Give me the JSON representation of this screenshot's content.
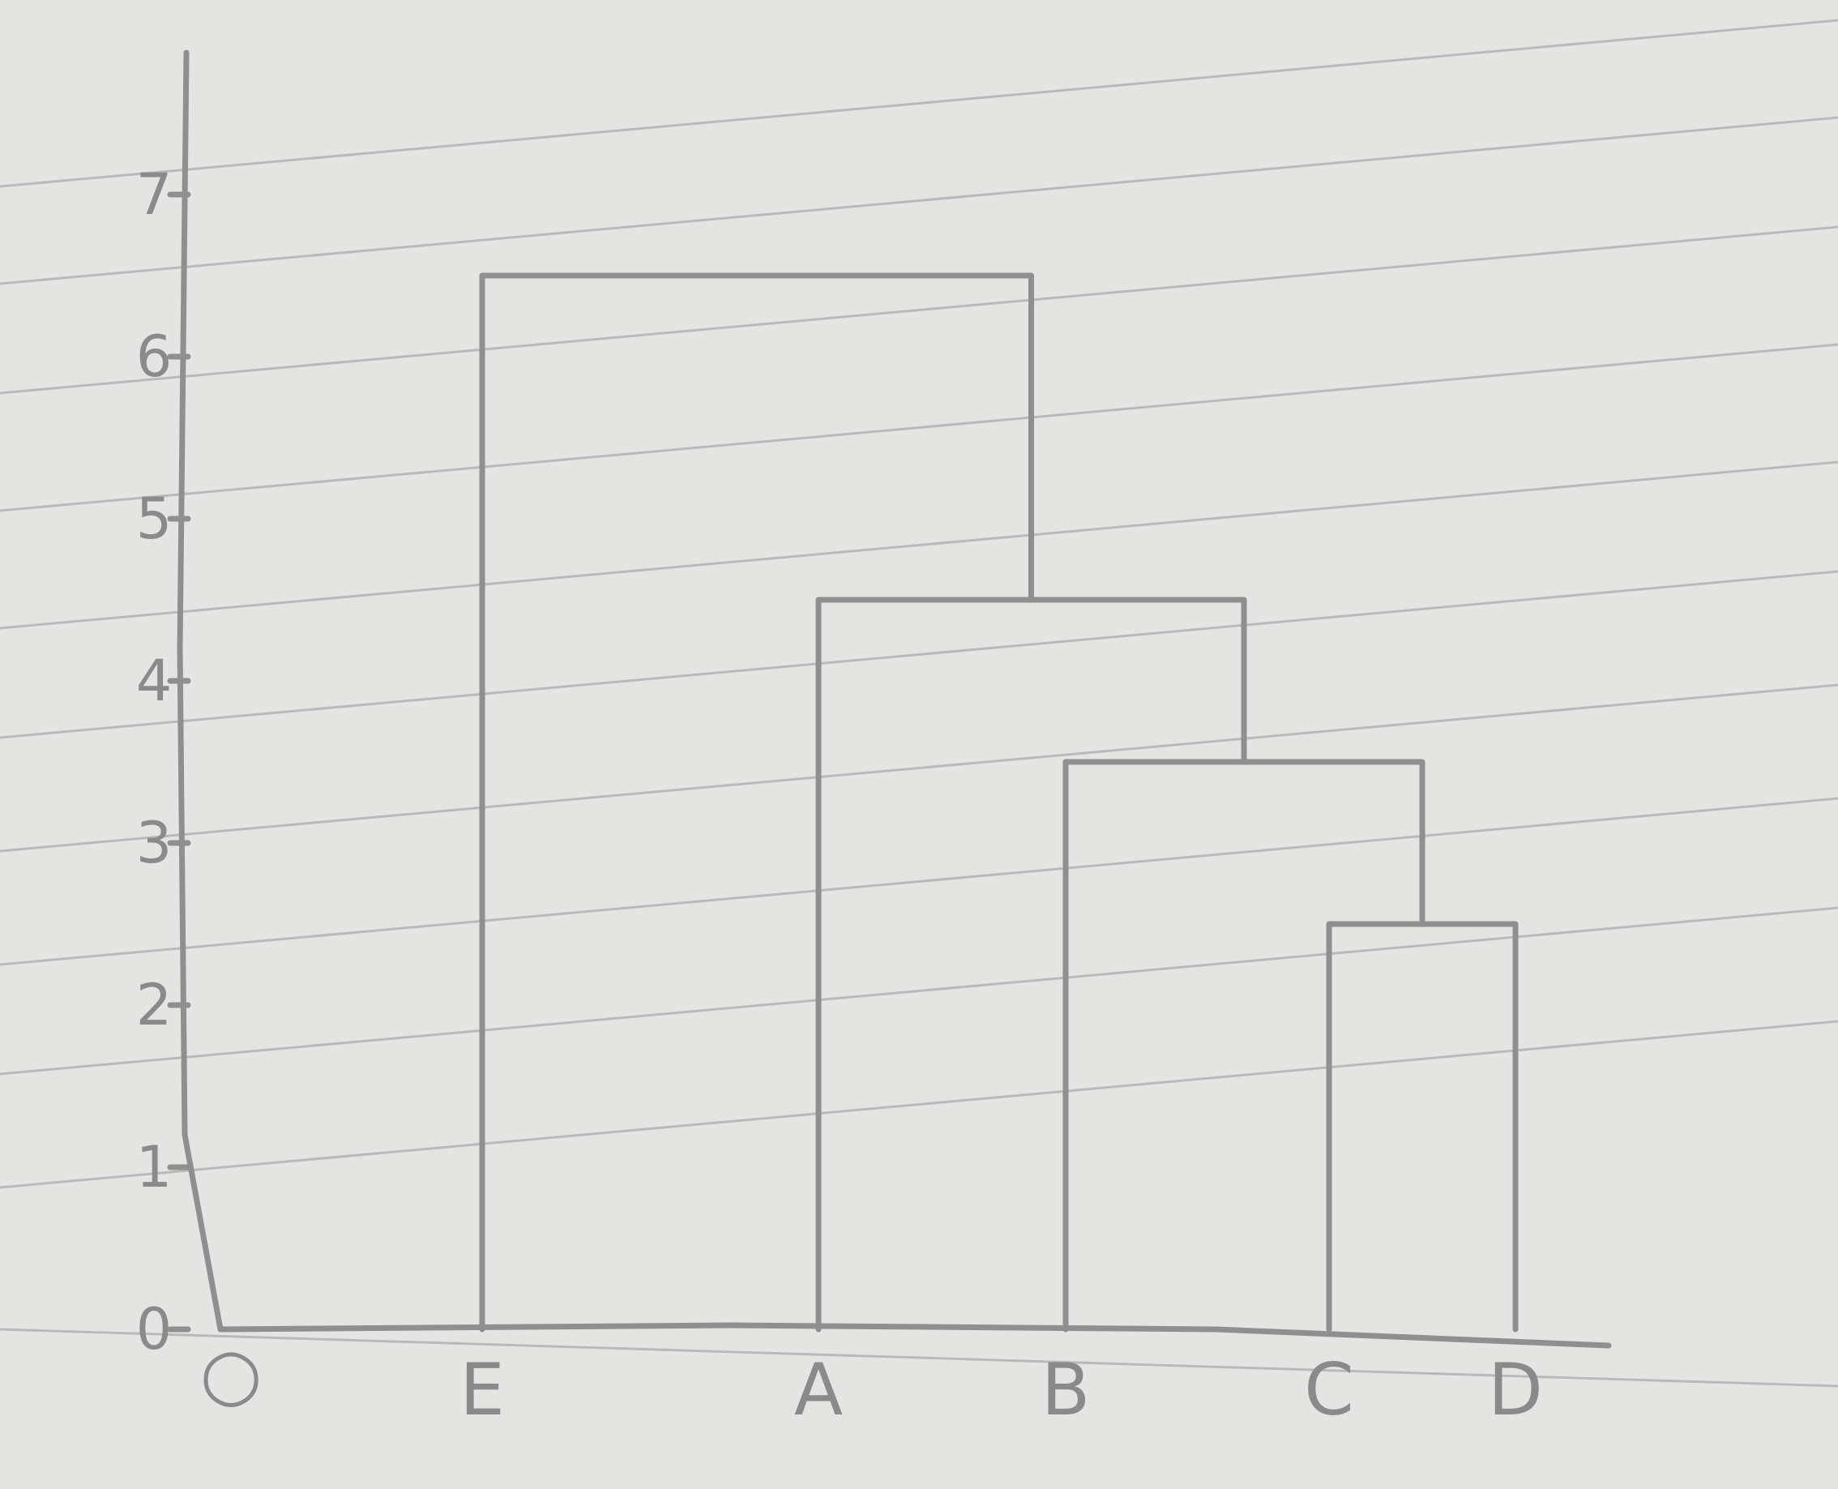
{
  "chart_data": {
    "type": "dendrogram",
    "title": "",
    "xlabel": "",
    "ylabel": "",
    "ylim": [
      0,
      7
    ],
    "y_ticks": [
      "0",
      "1",
      "2",
      "3",
      "4",
      "5",
      "6",
      "7"
    ],
    "origin_label": "○",
    "leaves": [
      "E",
      "A",
      "B",
      "C",
      "D"
    ],
    "merges": [
      {
        "left": "C",
        "right": "D",
        "height": 2.5
      },
      {
        "left": "B",
        "right": "C+D",
        "height": 3.5
      },
      {
        "left": "A",
        "right": "B+C+D",
        "height": 4.5
      },
      {
        "left": "E",
        "right": "A+B+C+D",
        "height": 6.5
      }
    ],
    "colors": {
      "paper": "#e4e4e2",
      "rule_lines": "#b9b9b9",
      "pencil": "#8f8f8f"
    }
  }
}
